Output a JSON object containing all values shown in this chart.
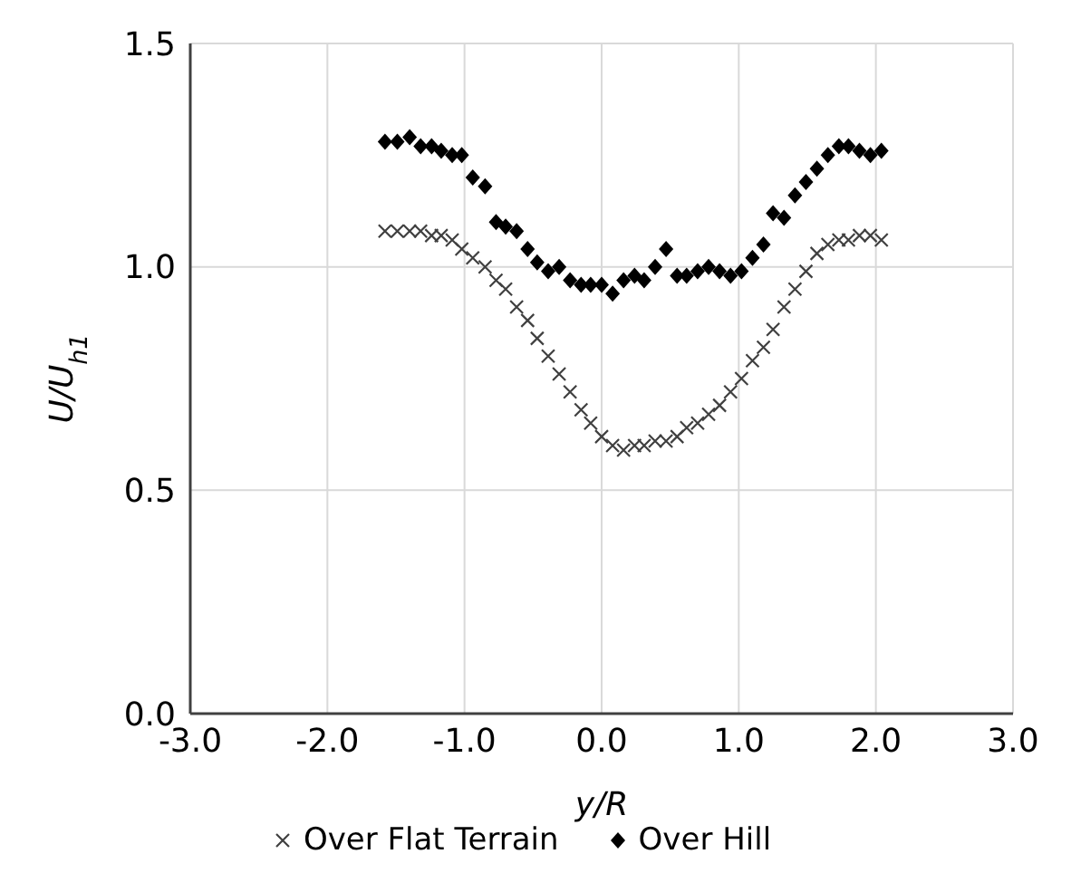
{
  "chart_data": {
    "type": "scatter",
    "xlabel": "y/R",
    "ylabel": "U/U$_{h1}$",
    "x": [
      -1.58,
      -1.49,
      -1.4,
      -1.32,
      -1.24,
      -1.17,
      -1.09,
      -1.02,
      -0.94,
      -0.85,
      -0.77,
      -0.7,
      -0.62,
      -0.54,
      -0.47,
      -0.39,
      -0.31,
      -0.23,
      -0.15,
      -0.08,
      0.0,
      0.08,
      0.16,
      0.24,
      0.31,
      0.39,
      0.47,
      0.55,
      0.62,
      0.7,
      0.78,
      0.86,
      0.94,
      1.02,
      1.1,
      1.18,
      1.25,
      1.33,
      1.41,
      1.49,
      1.57,
      1.65,
      1.73,
      1.8,
      1.88,
      1.96,
      2.04
    ],
    "series": [
      {
        "name": "Over Flat Terrain",
        "color": "#404040",
        "marker": "cross",
        "values": [
          1.08,
          1.08,
          1.08,
          1.08,
          1.07,
          1.07,
          1.06,
          1.04,
          1.02,
          1.0,
          0.97,
          0.95,
          0.91,
          0.88,
          0.84,
          0.8,
          0.76,
          0.72,
          0.68,
          0.65,
          0.62,
          0.6,
          0.59,
          0.6,
          0.6,
          0.61,
          0.61,
          0.62,
          0.64,
          0.65,
          0.67,
          0.69,
          0.72,
          0.75,
          0.79,
          0.82,
          0.86,
          0.91,
          0.95,
          0.99,
          1.03,
          1.05,
          1.06,
          1.06,
          1.07,
          1.07,
          1.06
        ]
      },
      {
        "name": "Over Hill",
        "color": "#000000",
        "marker": "diamond",
        "values": [
          1.28,
          1.28,
          1.29,
          1.27,
          1.27,
          1.26,
          1.25,
          1.25,
          1.2,
          1.18,
          1.1,
          1.09,
          1.08,
          1.04,
          1.01,
          0.99,
          1.0,
          0.97,
          0.96,
          0.96,
          0.96,
          0.94,
          0.97,
          0.98,
          0.97,
          1.0,
          1.04,
          0.98,
          0.98,
          0.99,
          1.0,
          0.99,
          0.98,
          0.99,
          1.02,
          1.05,
          1.12,
          1.11,
          1.16,
          1.19,
          1.22,
          1.25,
          1.27,
          1.27,
          1.26,
          1.25,
          1.26
        ]
      }
    ],
    "xlim": [
      -3,
      3
    ],
    "xticks": [
      {
        "value": -3,
        "label": "-3.0"
      },
      {
        "value": -2,
        "label": "-2.0"
      },
      {
        "value": -1,
        "label": "-1.0"
      },
      {
        "value": 0,
        "label": "0.0"
      },
      {
        "value": 1,
        "label": "1.0"
      },
      {
        "value": 2,
        "label": "2.0"
      },
      {
        "value": 3,
        "label": "3.0"
      }
    ],
    "ylim": [
      0,
      1.5
    ],
    "yticks": [
      {
        "value": 0,
        "label": "0.0"
      },
      {
        "value": 0.5,
        "label": "0.5"
      },
      {
        "value": 1,
        "label": "1.0"
      },
      {
        "value": 1.5,
        "label": "1.5"
      }
    ],
    "grid": true,
    "legend": "bottom"
  }
}
